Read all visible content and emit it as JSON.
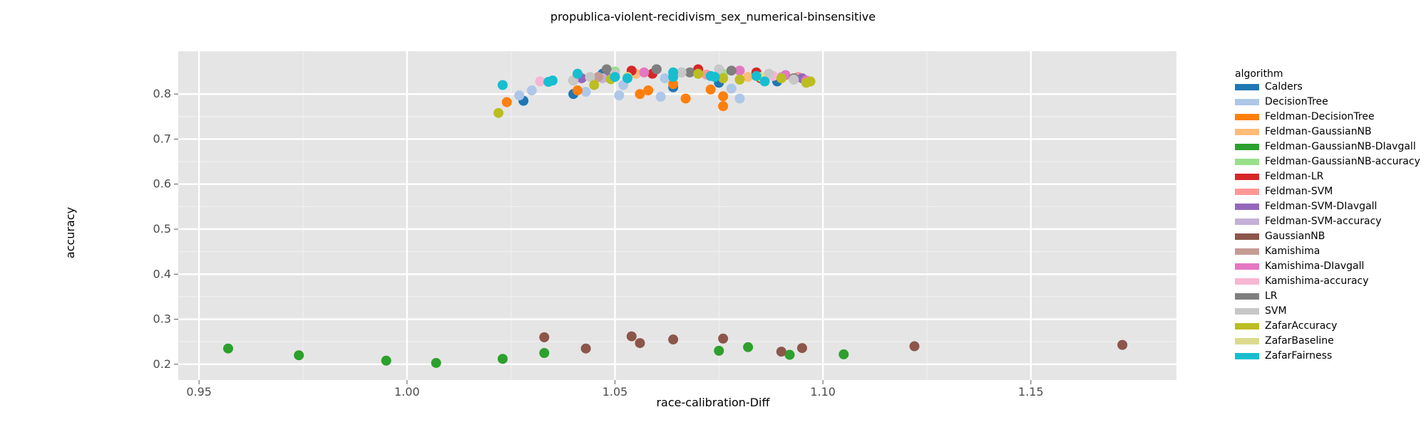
{
  "chart_data": {
    "type": "scatter",
    "title": "propublica-violent-recidivism_sex_numerical-binsensitive",
    "xlabel": "race-calibration-Diff",
    "ylabel": "accuracy",
    "xlim": [
      0.945,
      1.185
    ],
    "ylim": [
      0.165,
      0.895
    ],
    "xticks": [
      0.95,
      1.0,
      1.05,
      1.1,
      1.15
    ],
    "xtick_labels": [
      "0.95",
      "1.00",
      "1.05",
      "1.10",
      "1.15"
    ],
    "yticks": [
      0.2,
      0.3,
      0.4,
      0.5,
      0.6,
      0.7,
      0.8
    ],
    "ytick_labels": [
      "0.2",
      "0.3",
      "0.4",
      "0.5",
      "0.6",
      "0.7",
      "0.8"
    ],
    "grid": true,
    "legend_title": "algorithm",
    "legend_position": "right",
    "series": [
      {
        "name": "Calders",
        "color": "#1f77b4",
        "points": [
          [
            1.028,
            0.785
          ],
          [
            1.04,
            0.8
          ],
          [
            1.047,
            0.845
          ],
          [
            1.064,
            0.815
          ],
          [
            1.075,
            0.825
          ],
          [
            1.089,
            0.828
          ]
        ]
      },
      {
        "name": "DecisionTree",
        "color": "#aec7e8",
        "points": [
          [
            1.027,
            0.797
          ],
          [
            1.03,
            0.808
          ],
          [
            1.043,
            0.805
          ],
          [
            1.051,
            0.797
          ],
          [
            1.052,
            0.82
          ],
          [
            1.061,
            0.794
          ],
          [
            1.078,
            0.812
          ],
          [
            1.08,
            0.79
          ],
          [
            1.062,
            0.835
          ]
        ]
      },
      {
        "name": "Feldman-DecisionTree",
        "color": "#ff7f0e",
        "points": [
          [
            1.024,
            0.782
          ],
          [
            1.041,
            0.808
          ],
          [
            1.056,
            0.8
          ],
          [
            1.058,
            0.808
          ],
          [
            1.064,
            0.822
          ],
          [
            1.067,
            0.79
          ],
          [
            1.073,
            0.81
          ],
          [
            1.076,
            0.795
          ],
          [
            1.076,
            0.773
          ]
        ]
      },
      {
        "name": "Feldman-GaussianNB",
        "color": "#ffbb78",
        "points": [
          [
            1.055,
            0.845
          ],
          [
            1.082,
            0.838
          ]
        ]
      },
      {
        "name": "Feldman-GaussianNB-DIavgall",
        "color": "#2ca02c",
        "points": [
          [
            0.957,
            0.235
          ],
          [
            0.974,
            0.22
          ],
          [
            0.995,
            0.208
          ],
          [
            1.007,
            0.203
          ],
          [
            1.023,
            0.212
          ],
          [
            1.033,
            0.225
          ],
          [
            1.075,
            0.23
          ],
          [
            1.082,
            0.238
          ],
          [
            1.092,
            0.221
          ],
          [
            1.105,
            0.222
          ]
        ]
      },
      {
        "name": "Feldman-GaussianNB-accuracy",
        "color": "#98df8a",
        "points": [
          [
            1.05,
            0.85
          ],
          [
            1.076,
            0.845
          ]
        ]
      },
      {
        "name": "Feldman-LR",
        "color": "#d62728",
        "points": [
          [
            1.054,
            0.852
          ],
          [
            1.059,
            0.845
          ],
          [
            1.07,
            0.855
          ],
          [
            1.084,
            0.848
          ],
          [
            1.085,
            0.835
          ]
        ]
      },
      {
        "name": "Feldman-SVM",
        "color": "#ff9896",
        "points": [
          [
            1.072,
            0.843
          ],
          [
            1.094,
            0.838
          ]
        ]
      },
      {
        "name": "Feldman-SVM-DIavgall",
        "color": "#9467bd",
        "points": [
          [
            1.042,
            0.835
          ],
          [
            1.048,
            0.838
          ],
          [
            1.095,
            0.835
          ]
        ]
      },
      {
        "name": "Feldman-SVM-accuracy",
        "color": "#c5b0d5",
        "points": [
          [
            1.047,
            0.835
          ],
          [
            1.09,
            0.838
          ]
        ]
      },
      {
        "name": "GaussianNB",
        "color": "#8c564b",
        "points": [
          [
            1.033,
            0.26
          ],
          [
            1.043,
            0.235
          ],
          [
            1.054,
            0.262
          ],
          [
            1.056,
            0.247
          ],
          [
            1.064,
            0.255
          ],
          [
            1.076,
            0.257
          ],
          [
            1.09,
            0.228
          ],
          [
            1.095,
            0.236
          ],
          [
            1.122,
            0.24
          ],
          [
            1.172,
            0.243
          ],
          [
            1.04,
            0.83
          ],
          [
            1.06,
            0.855
          ]
        ]
      },
      {
        "name": "Kamishima",
        "color": "#c49c94",
        "points": [
          [
            1.046,
            0.838
          ],
          [
            1.066,
            0.848
          ]
        ]
      },
      {
        "name": "Kamishima-DIavgall",
        "color": "#e377c2",
        "points": [
          [
            1.057,
            0.848
          ],
          [
            1.08,
            0.852
          ],
          [
            1.091,
            0.842
          ],
          [
            1.096,
            0.83
          ]
        ]
      },
      {
        "name": "Kamishima-accuracy",
        "color": "#f7b6d2",
        "points": [
          [
            1.032,
            0.828
          ],
          [
            1.088,
            0.84
          ]
        ]
      },
      {
        "name": "LR",
        "color": "#7f7f7f",
        "points": [
          [
            1.048,
            0.855
          ],
          [
            1.06,
            0.855
          ],
          [
            1.068,
            0.848
          ],
          [
            1.078,
            0.852
          ],
          [
            1.093,
            0.835
          ]
        ]
      },
      {
        "name": "SVM",
        "color": "#c7c7c7",
        "points": [
          [
            1.04,
            0.83
          ],
          [
            1.044,
            0.838
          ],
          [
            1.05,
            0.845
          ],
          [
            1.066,
            0.848
          ],
          [
            1.075,
            0.855
          ],
          [
            1.087,
            0.845
          ],
          [
            1.093,
            0.832
          ]
        ]
      },
      {
        "name": "ZafarAccuracy",
        "color": "#bcbd22",
        "points": [
          [
            1.022,
            0.758
          ],
          [
            1.045,
            0.82
          ],
          [
            1.049,
            0.833
          ],
          [
            1.07,
            0.845
          ],
          [
            1.076,
            0.835
          ],
          [
            1.08,
            0.832
          ],
          [
            1.09,
            0.835
          ],
          [
            1.096,
            0.825
          ],
          [
            1.097,
            0.828
          ]
        ]
      },
      {
        "name": "ZafarBaseline",
        "color": "#dbdb8d",
        "points": [
          [
            1.053,
            0.838
          ],
          [
            1.085,
            0.838
          ]
        ]
      },
      {
        "name": "ZafarFairness",
        "color": "#17becf",
        "points": [
          [
            1.023,
            0.82
          ],
          [
            1.034,
            0.827
          ],
          [
            1.035,
            0.83
          ],
          [
            1.041,
            0.845
          ],
          [
            1.05,
            0.838
          ],
          [
            1.053,
            0.835
          ],
          [
            1.064,
            0.848
          ],
          [
            1.064,
            0.838
          ],
          [
            1.073,
            0.84
          ],
          [
            1.074,
            0.838
          ],
          [
            1.084,
            0.84
          ],
          [
            1.086,
            0.828
          ]
        ]
      }
    ]
  }
}
